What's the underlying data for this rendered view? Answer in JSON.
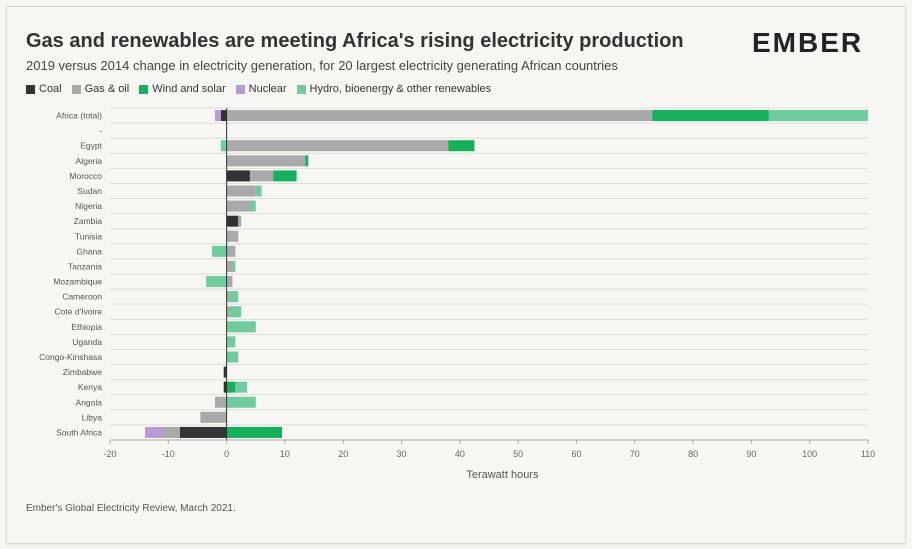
{
  "header": {
    "title": "Gas and renewables are meeting Africa's rising electricity production",
    "subtitle": "2019 versus 2014 change in electricity generation, for 20 largest electricity generating African countries",
    "logo": "EMBER"
  },
  "footer": {
    "source": "Ember's Global Electricity Review, March 2021."
  },
  "colors": {
    "Coal": "#333333",
    "Gas & oil": "#a9a9a9",
    "Wind and solar": "#14b15c",
    "Nuclear": "#b99bd2",
    "Hydro, bioenergy & other renewables": "#6fcc9c"
  },
  "chart_data": {
    "type": "bar",
    "orientation": "horizontal",
    "stacked": true,
    "title": "Gas and renewables are meeting Africa's rising electricity production",
    "subtitle": "2019 versus 2014 change in electricity generation, for 20 largest electricity generating African countries",
    "xlabel": "Terawatt hours",
    "ylabel": "",
    "xlim": [
      -20,
      110
    ],
    "xticks": [
      -20,
      -10,
      0,
      10,
      20,
      30,
      40,
      50,
      60,
      70,
      80,
      90,
      100,
      110
    ],
    "grid": true,
    "legend_position": "top-left",
    "categories": [
      "Africa (total)",
      "-",
      "Egypt",
      "Algeria",
      "Morocco",
      "Sudan",
      "Nigeria",
      "Zambia",
      "Tunisia",
      "Ghana",
      "Tanzania",
      "Mozambique",
      "Cameroon",
      "Cote d'Ivoire",
      "Ethiopia",
      "Uganda",
      "Congo-Kinshasa",
      "Zimbabwe",
      "Kenya",
      "Angola",
      "Libya",
      "South Africa"
    ],
    "series": [
      {
        "name": "Coal",
        "values": [
          -1,
          0,
          0,
          0,
          4,
          0,
          0,
          2,
          0,
          0,
          0,
          0,
          0,
          0,
          0,
          0,
          0,
          -0.5,
          -0.5,
          0,
          0,
          -8
        ]
      },
      {
        "name": "Gas & oil",
        "values": [
          73,
          0,
          38,
          13.5,
          4,
          5,
          4,
          0.5,
          2,
          1.5,
          1,
          1,
          0.5,
          0.5,
          0,
          0,
          0,
          0,
          0,
          -2,
          -4.5,
          -3
        ]
      },
      {
        "name": "Wind and solar",
        "values": [
          20,
          0,
          4.5,
          0.5,
          4,
          0,
          0,
          0,
          0,
          0,
          0,
          0,
          0,
          0,
          0,
          0,
          0,
          0,
          1.5,
          0,
          0,
          9.5
        ]
      },
      {
        "name": "Nuclear",
        "values": [
          -1,
          0,
          0,
          0,
          0,
          0,
          0,
          0,
          0,
          0,
          0,
          0,
          0,
          0,
          0,
          0,
          0,
          0,
          0,
          0,
          0,
          -3
        ]
      },
      {
        "name": "Hydro, bioenergy & other renewables",
        "values": [
          17,
          0,
          -1,
          0,
          0,
          1,
          1,
          0,
          0,
          -2.5,
          0.5,
          -3.5,
          1.5,
          2,
          5,
          1.5,
          2,
          0,
          2,
          5,
          0,
          0
        ]
      }
    ]
  }
}
